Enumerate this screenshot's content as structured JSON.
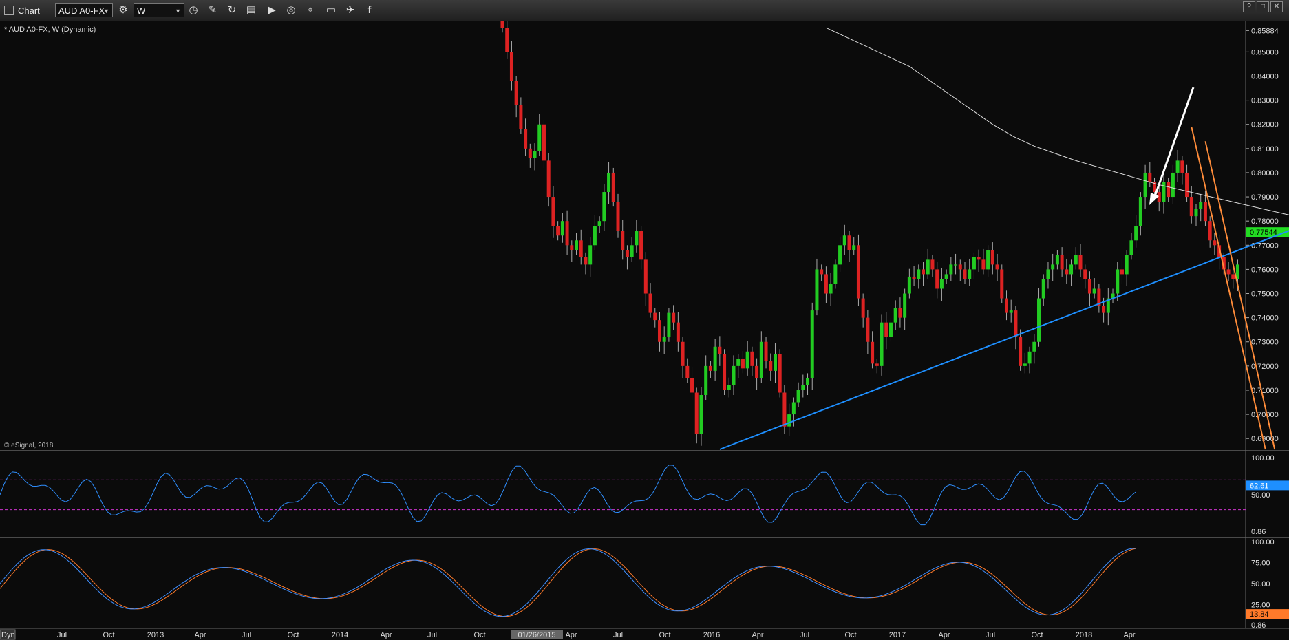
{
  "toolbar": {
    "title": "Chart",
    "symbol": "AUD A0-FX",
    "interval": "W",
    "window_buttons": [
      "?",
      "□",
      "✕"
    ]
  },
  "chart_info": {
    "symbol_label": "* AUD A0-FX, W (Dynamic)",
    "copyright": "© eSignal, 2018"
  },
  "colors": {
    "up_candle": "#22cc22",
    "down_candle": "#dd2222",
    "moving_average": "#dddddd",
    "trendline": "#1e8fff",
    "channel": "#ff8c3a",
    "arrow": "#ffffff",
    "rsi_line": "#2f8fff",
    "rsi_levels": "#cc33cc",
    "stoch_k": "#3f8fff",
    "stoch_d": "#ff7a2a",
    "last_price_tag": "#22dd22"
  },
  "chart_data": [
    {
      "type": "candlestick",
      "interval": "weekly",
      "price_axis_ticks": [
        "0.85884",
        "0.85000",
        "0.84000",
        "0.83000",
        "0.82000",
        "0.81000",
        "0.80000",
        "0.79000",
        "0.78000",
        "0.77000",
        "0.76000",
        "0.75000",
        "0.74000",
        "0.73000",
        "0.72000",
        "0.71000",
        "0.70000",
        "0.69000"
      ],
      "ylim": [
        0.6855,
        0.8615
      ],
      "last_price": "0.77544",
      "series": [
        {
          "name": "AUD A0-FX",
          "note": "weekly OHLC, approximate",
          "closes": [
            0.86,
            0.85,
            0.838,
            0.828,
            0.818,
            0.81,
            0.806,
            0.809,
            0.82,
            0.805,
            0.79,
            0.778,
            0.774,
            0.78,
            0.77,
            0.768,
            0.772,
            0.765,
            0.762,
            0.77,
            0.778,
            0.78,
            0.792,
            0.8,
            0.788,
            0.776,
            0.768,
            0.765,
            0.77,
            0.776,
            0.764,
            0.75,
            0.742,
            0.739,
            0.73,
            0.732,
            0.742,
            0.738,
            0.73,
            0.72,
            0.715,
            0.709,
            0.692,
            0.708,
            0.72,
            0.718,
            0.728,
            0.725,
            0.71,
            0.712,
            0.72,
            0.723,
            0.719,
            0.726,
            0.72,
            0.715,
            0.73,
            0.722,
            0.718,
            0.725,
            0.709,
            0.695,
            0.7,
            0.705,
            0.71,
            0.712,
            0.715,
            0.743,
            0.76,
            0.758,
            0.75,
            0.754,
            0.762,
            0.77,
            0.774,
            0.768,
            0.77,
            0.748,
            0.74,
            0.73,
            0.721,
            0.72,
            0.738,
            0.732,
            0.738,
            0.744,
            0.74,
            0.75,
            0.757,
            0.756,
            0.76,
            0.758,
            0.764,
            0.76,
            0.752,
            0.756,
            0.758,
            0.762,
            0.762,
            0.76,
            0.756,
            0.76,
            0.765,
            0.764,
            0.76,
            0.768,
            0.762,
            0.76,
            0.748,
            0.742,
            0.743,
            0.732,
            0.72,
            0.721,
            0.726,
            0.73,
            0.748,
            0.756,
            0.76,
            0.762,
            0.766,
            0.76,
            0.758,
            0.762,
            0.766,
            0.76,
            0.756,
            0.75,
            0.752,
            0.745,
            0.742,
            0.748,
            0.75,
            0.76,
            0.758,
            0.766,
            0.772,
            0.778,
            0.79,
            0.8,
            0.796,
            0.792,
            0.788,
            0.796,
            0.79,
            0.8,
            0.805,
            0.8,
            0.79,
            0.782,
            0.785,
            0.788,
            0.78,
            0.772,
            0.77,
            0.765,
            0.76,
            0.758,
            0.756,
            0.762,
            0.75,
            0.76,
            0.768,
            0.78,
            0.782,
            0.79,
            0.8,
            0.81,
            0.798,
            0.792,
            0.788,
            0.782,
            0.78,
            0.784,
            0.776,
            0.774,
            0.768,
            0.765,
            0.77,
            0.7754
          ]
        }
      ],
      "overlays": {
        "moving_average": {
          "x_start_week": 70,
          "values": [
            0.86,
            0.856,
            0.852,
            0.848,
            0.844,
            0.838,
            0.832,
            0.826,
            0.82,
            0.815,
            0.811,
            0.808,
            0.805,
            0.8025,
            0.8,
            0.7975,
            0.795,
            0.793,
            0.791,
            0.789,
            0.787,
            0.785,
            0.783,
            0.781,
            0.779
          ]
        },
        "trendline": {
          "from": {
            "week": 47,
            "price": 0.6855
          },
          "to": {
            "week": 178,
            "price": 0.7818
          }
        },
        "channel_lines": [
          {
            "from": {
              "week": 149,
              "price": 0.819
            },
            "to": {
              "week": 165,
              "price": 0.6855
            }
          },
          {
            "from": {
              "week": 152,
              "price": 0.813
            },
            "to": {
              "week": 167,
              "price": 0.6855
            }
          }
        ]
      }
    },
    {
      "type": "line",
      "indicator": "RSI",
      "axis_ticks": [
        "100.00",
        "50.00",
        "0.86"
      ],
      "last_value": "62.61",
      "levels": [
        70,
        30
      ],
      "ylim": [
        0,
        100
      ],
      "series": [
        {
          "name": "RSI",
          "values_note": "approximate oscillating path"
        }
      ]
    },
    {
      "type": "line",
      "indicator": "Stochastic",
      "axis_ticks": [
        "100.00",
        "75.00",
        "50.00",
        "25.00",
        "0.86"
      ],
      "last_value": "13.84",
      "ylim": [
        0,
        100
      ],
      "series": [
        {
          "name": "%K"
        },
        {
          "name": "%D"
        }
      ]
    }
  ],
  "time_axis": {
    "labels": [
      {
        "text": "Jul",
        "x": 90
      },
      {
        "text": "Oct",
        "x": 158
      },
      {
        "text": "2013",
        "x": 226
      },
      {
        "text": "Apr",
        "x": 291
      },
      {
        "text": "Jul",
        "x": 358
      },
      {
        "text": "Oct",
        "x": 426
      },
      {
        "text": "2014",
        "x": 494
      },
      {
        "text": "Apr",
        "x": 561
      },
      {
        "text": "Jul",
        "x": 628
      },
      {
        "text": "Oct",
        "x": 697
      },
      {
        "text": "01/26/2015",
        "x": 780
      },
      {
        "text": "Apr",
        "x": 830
      },
      {
        "text": "Jul",
        "x": 898
      },
      {
        "text": "Oct",
        "x": 966
      },
      {
        "text": "2016",
        "x": 1034
      },
      {
        "text": "Apr",
        "x": 1101
      },
      {
        "text": "Jul",
        "x": 1169
      },
      {
        "text": "Oct",
        "x": 1236
      },
      {
        "text": "2017",
        "x": 1304
      },
      {
        "text": "Apr",
        "x": 1372
      },
      {
        "text": "Jul",
        "x": 1439
      },
      {
        "text": "Oct",
        "x": 1507
      },
      {
        "text": "2018",
        "x": 1575
      },
      {
        "text": "Apr",
        "x": 1641
      }
    ],
    "selected_label": "01/26/2015",
    "corner": "Dyn"
  }
}
